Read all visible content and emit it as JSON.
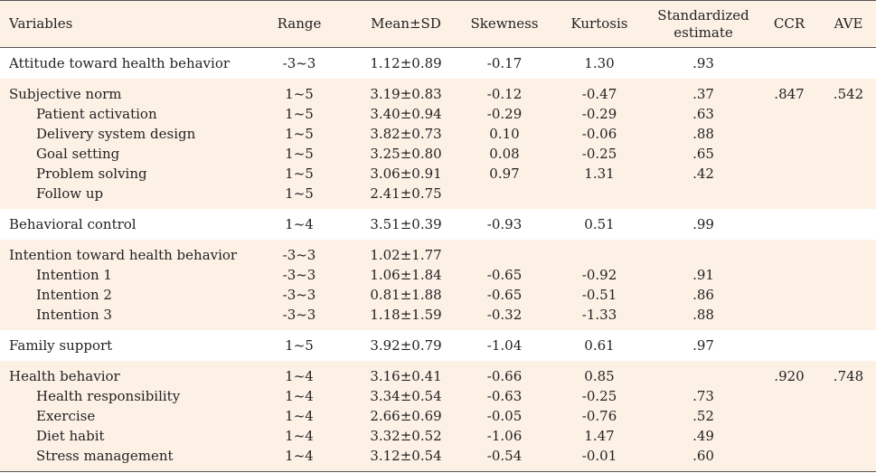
{
  "headers": {
    "variables": "Variables",
    "range": "Range",
    "mean_sd": "Mean±SD",
    "skewness": "Skewness",
    "kurtosis": "Kurtosis",
    "std_estimate_line1": "Standardized",
    "std_estimate_line2": "estimate",
    "ccr": "CCR",
    "ave": "AVE"
  },
  "groups": [
    {
      "shade": "white",
      "rows": [
        {
          "label": "Attitude toward health behavior",
          "sub": false,
          "range": "-3~3",
          "mean_sd": "1.12±0.89",
          "skewness": "-0.17",
          "kurtosis": "1.30",
          "std_estimate": ".93",
          "ccr": "",
          "ave": ""
        }
      ]
    },
    {
      "shade": "peach",
      "rows": [
        {
          "label": "Subjective norm",
          "sub": false,
          "range": "1~5",
          "mean_sd": "3.19±0.83",
          "skewness": "-0.12",
          "kurtosis": "-0.47",
          "std_estimate": ".37",
          "ccr": ".847",
          "ave": ".542"
        },
        {
          "label": "Patient activation",
          "sub": true,
          "range": "1~5",
          "mean_sd": "3.40±0.94",
          "skewness": "-0.29",
          "kurtosis": "-0.29",
          "std_estimate": ".63",
          "ccr": "",
          "ave": ""
        },
        {
          "label": "Delivery system design",
          "sub": true,
          "range": "1~5",
          "mean_sd": "3.82±0.73",
          "skewness": "0.10",
          "kurtosis": "-0.06",
          "std_estimate": ".88",
          "ccr": "",
          "ave": ""
        },
        {
          "label": "Goal setting",
          "sub": true,
          "range": "1~5",
          "mean_sd": "3.25±0.80",
          "skewness": "0.08",
          "kurtosis": "-0.25",
          "std_estimate": ".65",
          "ccr": "",
          "ave": ""
        },
        {
          "label": "Problem solving",
          "sub": true,
          "range": "1~5",
          "mean_sd": "3.06±0.91",
          "skewness": "0.97",
          "kurtosis": "1.31",
          "std_estimate": ".42",
          "ccr": "",
          "ave": ""
        },
        {
          "label": "Follow up",
          "sub": true,
          "range": "1~5",
          "mean_sd": "2.41±0.75",
          "skewness": "",
          "kurtosis": "",
          "std_estimate": "",
          "ccr": "",
          "ave": ""
        }
      ]
    },
    {
      "shade": "white",
      "rows": [
        {
          "label": "Behavioral control",
          "sub": false,
          "range": "1~4",
          "mean_sd": "3.51±0.39",
          "skewness": "-0.93",
          "kurtosis": "0.51",
          "std_estimate": ".99",
          "ccr": "",
          "ave": ""
        }
      ]
    },
    {
      "shade": "peach",
      "rows": [
        {
          "label": "Intention toward health behavior",
          "sub": false,
          "range": "-3~3",
          "mean_sd": "1.02±1.77",
          "skewness": "",
          "kurtosis": "",
          "std_estimate": "",
          "ccr": "",
          "ave": ""
        },
        {
          "label": "Intention 1",
          "sub": true,
          "range": "-3~3",
          "mean_sd": "1.06±1.84",
          "skewness": "-0.65",
          "kurtosis": "-0.92",
          "std_estimate": ".91",
          "ccr": "",
          "ave": ""
        },
        {
          "label": "Intention 2",
          "sub": true,
          "range": "-3~3",
          "mean_sd": "0.81±1.88",
          "skewness": "-0.65",
          "kurtosis": "-0.51",
          "std_estimate": ".86",
          "ccr": "",
          "ave": ""
        },
        {
          "label": "Intention 3",
          "sub": true,
          "range": "-3~3",
          "mean_sd": "1.18±1.59",
          "skewness": "-0.32",
          "kurtosis": "-1.33",
          "std_estimate": ".88",
          "ccr": "",
          "ave": ""
        }
      ]
    },
    {
      "shade": "white",
      "rows": [
        {
          "label": "Family support",
          "sub": false,
          "range": "1~5",
          "mean_sd": "3.92±0.79",
          "skewness": "-1.04",
          "kurtosis": "0.61",
          "std_estimate": ".97",
          "ccr": "",
          "ave": ""
        }
      ]
    },
    {
      "shade": "peach",
      "rows": [
        {
          "label": "Health behavior",
          "sub": false,
          "range": "1~4",
          "mean_sd": "3.16±0.41",
          "skewness": "-0.66",
          "kurtosis": "0.85",
          "std_estimate": "",
          "ccr": ".920",
          "ave": ".748"
        },
        {
          "label": "Health responsibility",
          "sub": true,
          "range": "1~4",
          "mean_sd": "3.34±0.54",
          "skewness": "-0.63",
          "kurtosis": "-0.25",
          "std_estimate": ".73",
          "ccr": "",
          "ave": ""
        },
        {
          "label": "Exercise",
          "sub": true,
          "range": "1~4",
          "mean_sd": "2.66±0.69",
          "skewness": "-0.05",
          "kurtosis": "-0.76",
          "std_estimate": ".52",
          "ccr": "",
          "ave": ""
        },
        {
          "label": "Diet habit",
          "sub": true,
          "range": "1~4",
          "mean_sd": "3.32±0.52",
          "skewness": "-1.06",
          "kurtosis": "1.47",
          "std_estimate": ".49",
          "ccr": "",
          "ave": ""
        },
        {
          "label": "Stress management",
          "sub": true,
          "range": "1~4",
          "mean_sd": "3.12±0.54",
          "skewness": "-0.54",
          "kurtosis": "-0.01",
          "std_estimate": ".60",
          "ccr": "",
          "ave": ""
        }
      ]
    }
  ]
}
